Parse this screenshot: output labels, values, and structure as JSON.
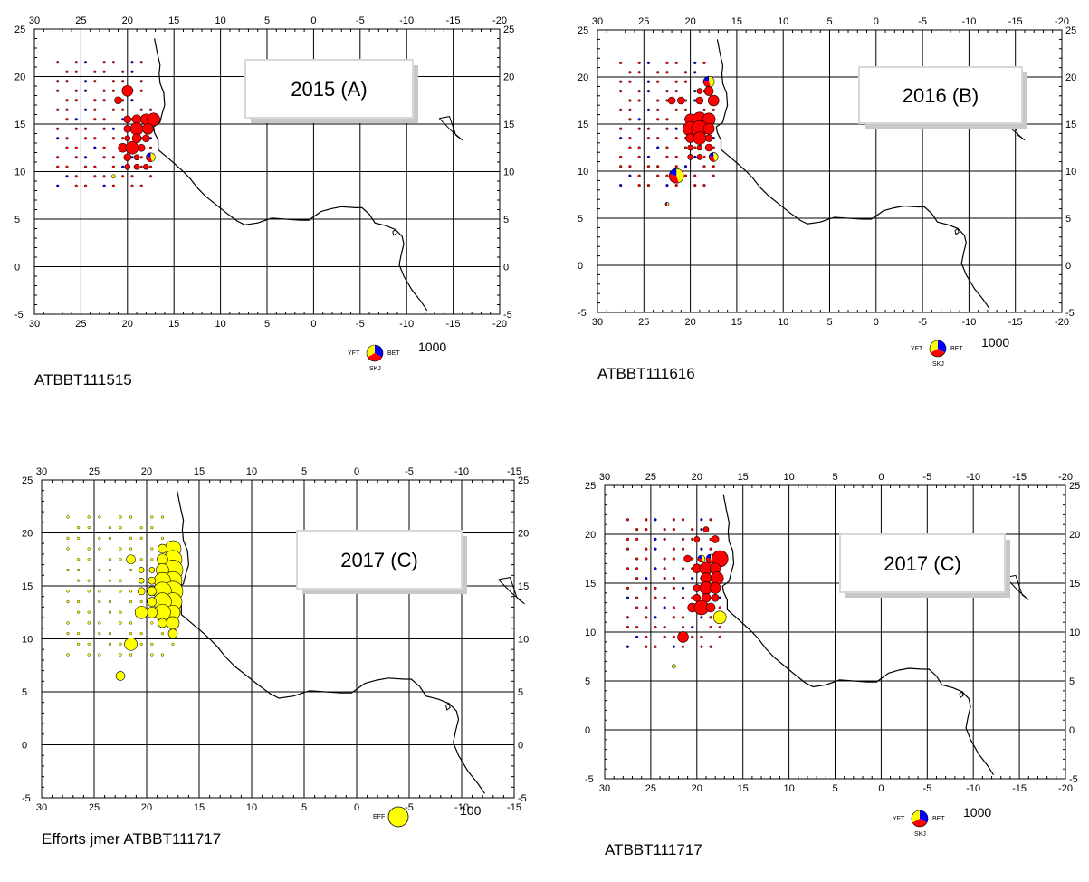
{
  "colors": {
    "skj": "#ff0000",
    "yft": "#ffff00",
    "bet": "#0000ff",
    "eff": "#ffff00"
  },
  "maps": [
    {
      "id": "A",
      "title": "2015 (A)",
      "caption": "ATBBT111515",
      "type": "species",
      "legend": {
        "yft": "YFT",
        "bet": "BET",
        "skj": "SKJ",
        "value": "1000"
      },
      "lon_ticks": [
        "30",
        "25",
        "20",
        "15",
        "10",
        "5",
        "0",
        "-5",
        "-10",
        "-15",
        "-20"
      ],
      "lat_ticks": [
        "25",
        "20",
        "15",
        "10",
        "5",
        "0",
        "-5"
      ]
    },
    {
      "id": "B",
      "title": "2016 (B)",
      "caption": "ATBBT111616",
      "type": "species",
      "legend": {
        "yft": "YFT",
        "bet": "BET",
        "skj": "SKJ",
        "value": "1000"
      },
      "lon_ticks": [
        "30",
        "25",
        "20",
        "15",
        "10",
        "5",
        "0",
        "-5",
        "-10",
        "-15",
        "-20"
      ],
      "lat_ticks": [
        "25",
        "20",
        "15",
        "10",
        "5",
        "0",
        "-5"
      ]
    },
    {
      "id": "C1",
      "title": "2017 (C)",
      "caption": "Efforts jmer ATBBT111717",
      "type": "effort",
      "legend": {
        "eff": "EFF",
        "value": "100"
      },
      "lon_ticks": [
        "30",
        "25",
        "20",
        "15",
        "10",
        "5",
        "0",
        "-5",
        "-10",
        "-15"
      ],
      "lat_ticks": [
        "25",
        "20",
        "15",
        "10",
        "5",
        "0",
        "-5"
      ]
    },
    {
      "id": "C2",
      "title": "2017 (C)",
      "caption": "ATBBT111717",
      "type": "species",
      "legend": {
        "yft": "YFT",
        "bet": "BET",
        "skj": "SKJ",
        "value": "1000"
      },
      "lon_ticks": [
        "30",
        "25",
        "20",
        "15",
        "10",
        "5",
        "0",
        "-5",
        "-10",
        "-15",
        "-20"
      ],
      "lat_ticks": [
        "25",
        "20",
        "15",
        "10",
        "5",
        "0",
        "-5"
      ]
    }
  ]
}
